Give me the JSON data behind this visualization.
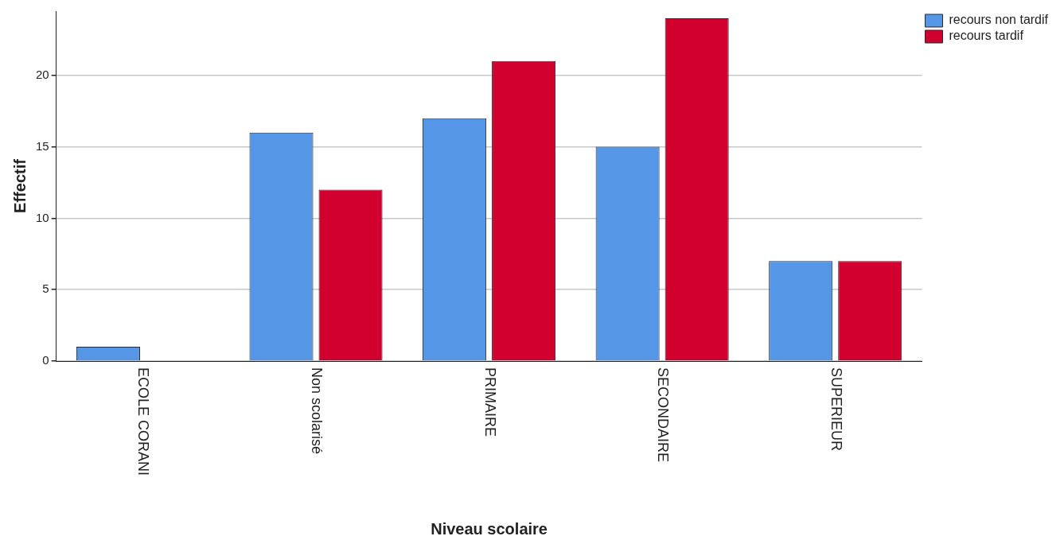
{
  "chart_data": {
    "type": "bar",
    "xlabel": "Niveau scolaire",
    "ylabel": "Effectif",
    "categories": [
      "ECOLE CORANI",
      "Non scolarisé",
      "PRIMAIRE",
      "SECONDAIRE",
      "SUPERIEUR"
    ],
    "series": [
      {
        "name": "recours non tardif",
        "color": "#5596e6",
        "values": [
          1,
          16,
          17,
          15,
          7
        ]
      },
      {
        "name": "recours tardif",
        "color": "#d2002f",
        "values": [
          0,
          12,
          21,
          24,
          7
        ]
      }
    ],
    "ylim": [
      0,
      24.5
    ],
    "yticks": [
      0,
      5,
      10,
      15,
      20
    ],
    "grid": "y",
    "legend": "top right"
  }
}
